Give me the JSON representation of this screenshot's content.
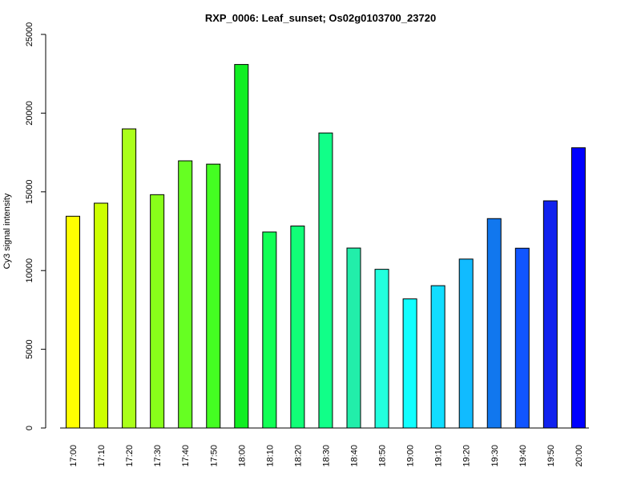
{
  "chart_data": {
    "type": "bar",
    "title": "RXP_0006: Leaf_sunset; Os02g0103700_23720",
    "xlabel": "",
    "ylabel": "Cy3 signal intensity",
    "ylim": [
      0,
      25000
    ],
    "yticks": [
      0,
      5000,
      10000,
      15000,
      20000,
      25000
    ],
    "grid": false,
    "categories": [
      "17:00",
      "17:10",
      "17:20",
      "17:30",
      "17:40",
      "17:50",
      "18:00",
      "18:10",
      "18:20",
      "18:30",
      "18:40",
      "18:50",
      "19:00",
      "19:10",
      "19:20",
      "19:30",
      "19:40",
      "19:50",
      "20:00"
    ],
    "values": [
      13450,
      14280,
      19000,
      14820,
      16970,
      16760,
      23090,
      12450,
      12830,
      18740,
      11430,
      10080,
      8200,
      9040,
      10730,
      13300,
      11420,
      14430,
      17800
    ],
    "colors": [
      "#ffff00",
      "#ccff00",
      "#aaff1a",
      "#88ff1a",
      "#66ff22",
      "#44ff22",
      "#11ee22",
      "#11ff55",
      "#11ff77",
      "#11ff88",
      "#22eeaa",
      "#22ffdd",
      "#11ffff",
      "#11ddff",
      "#11bbff",
      "#1177ee",
      "#1155ff",
      "#1122ee",
      "#0000ff"
    ]
  }
}
